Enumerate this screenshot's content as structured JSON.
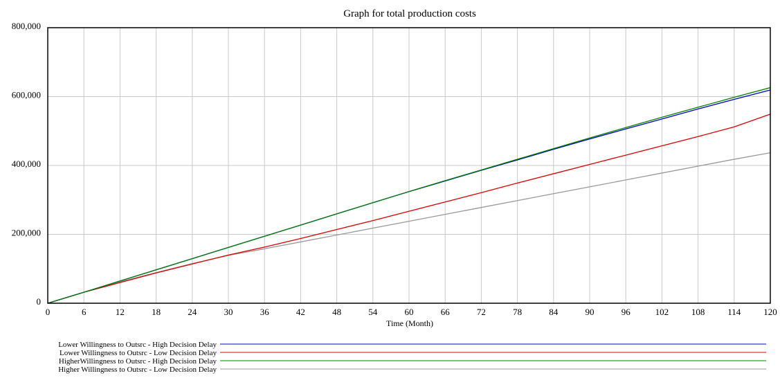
{
  "chart_data": {
    "type": "line",
    "title": "Graph for total production costs",
    "xlabel": "Time (Month)",
    "ylabel": "",
    "xlim": [
      0,
      120
    ],
    "ylim": [
      0,
      800000
    ],
    "x_ticks": [
      0,
      6,
      12,
      18,
      24,
      30,
      36,
      42,
      48,
      54,
      60,
      66,
      72,
      78,
      84,
      90,
      96,
      102,
      108,
      114,
      120
    ],
    "x_tick_labels": [
      "0",
      "6",
      "12",
      "18",
      "24",
      "30",
      "36",
      "42",
      "48",
      "54",
      "60",
      "66",
      "72",
      "78",
      "84",
      "90",
      "96",
      "102",
      "108",
      "114",
      "120"
    ],
    "y_ticks": [
      0,
      200000,
      400000,
      600000,
      800000
    ],
    "y_tick_labels": [
      "0",
      "200,000",
      "400,000",
      "600,000",
      "800,000"
    ],
    "grid": true,
    "legend_position": "bottom",
    "x": [
      0,
      6,
      12,
      18,
      24,
      30,
      36,
      42,
      48,
      54,
      60,
      66,
      72,
      78,
      84,
      90,
      96,
      102,
      108,
      114,
      120
    ],
    "series": [
      {
        "name": "Lower Willingness to Outsrc - High Decision Delay",
        "color": "#0000cc",
        "values": [
          0,
          32000,
          64500,
          97000,
          129500,
          162000,
          194500,
          227000,
          259500,
          292000,
          324000,
          355000,
          386000,
          416000,
          447000,
          477000,
          506000,
          535000,
          564000,
          592000,
          619000
        ]
      },
      {
        "name": "Lower Willingness to Outsrc - Low Decision Delay",
        "color": "#dd0000",
        "values": [
          0,
          32000,
          60000,
          88000,
          114000,
          140000,
          163000,
          188000,
          214000,
          240000,
          267000,
          294000,
          321000,
          349000,
          376000,
          403000,
          430000,
          457000,
          484000,
          512000,
          549000
        ]
      },
      {
        "name": "HigherWillingness to Outsrc - High Decision Delay",
        "color": "#008000",
        "values": [
          0,
          32000,
          64500,
          97000,
          129500,
          162000,
          194500,
          227000,
          259500,
          292000,
          324500,
          356000,
          387000,
          418000,
          449000,
          480000,
          510000,
          540000,
          569000,
          598000,
          626000
        ]
      },
      {
        "name": "Higher Willingness to Outsrc - Low Decision Delay",
        "color": "#999999",
        "values": [
          0,
          32000,
          62000,
          89000,
          115000,
          139000,
          158000,
          178000,
          198000,
          218000,
          238000,
          258000,
          278000,
          298000,
          318000,
          338000,
          358000,
          378000,
          398000,
          418000,
          437000
        ]
      }
    ]
  }
}
